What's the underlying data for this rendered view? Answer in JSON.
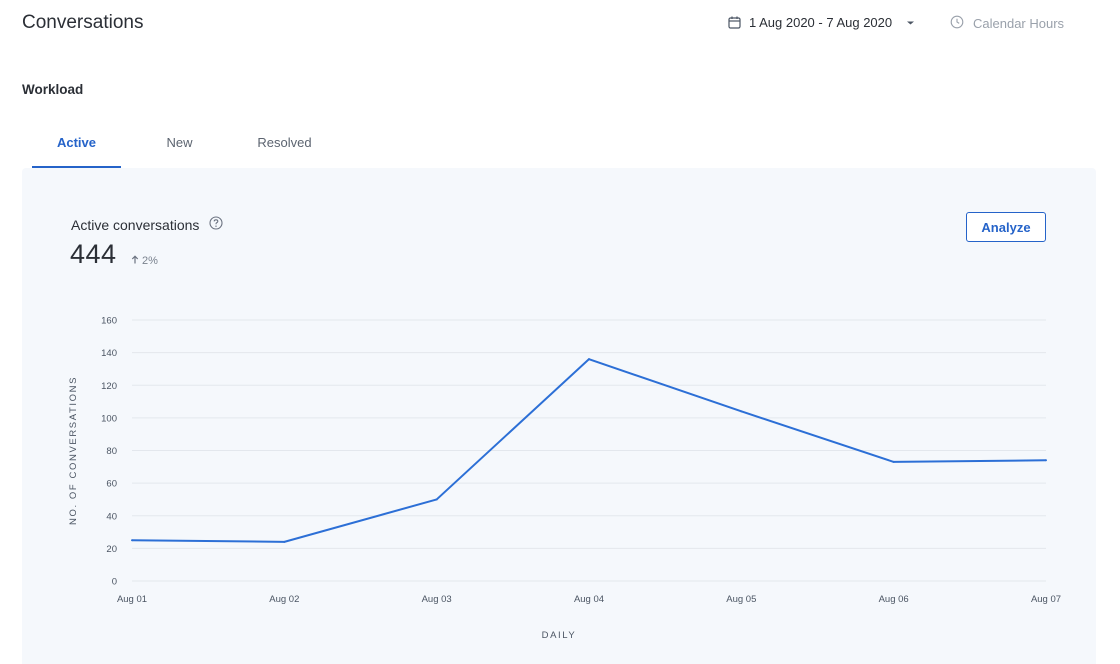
{
  "header": {
    "title": "Conversations",
    "date_range": "1 Aug 2020 - 7 Aug 2020",
    "calendar_hours": "Calendar Hours"
  },
  "section": {
    "title": "Workload"
  },
  "tabs": [
    {
      "label": "Active",
      "active": true
    },
    {
      "label": "New",
      "active": false
    },
    {
      "label": "Resolved",
      "active": false
    }
  ],
  "metric": {
    "label": "Active conversations",
    "value": "444",
    "change": "2%",
    "change_direction": "up"
  },
  "analyze_label": "Analyze",
  "colors": {
    "accent": "#2563c9",
    "line": "#2c6fd6",
    "grid": "#e3e7ed",
    "panel": "#f5f8fc"
  },
  "chart_data": {
    "type": "line",
    "title": "",
    "xlabel": "DAILY",
    "ylabel": "NO. OF CONVERSATIONS",
    "categories": [
      "Aug 01",
      "Aug 02",
      "Aug 03",
      "Aug 04",
      "Aug 05",
      "Aug 06",
      "Aug 07"
    ],
    "series": [
      {
        "values": [
          25,
          24,
          50,
          136,
          104,
          73,
          74
        ]
      }
    ],
    "ylim": [
      0,
      160
    ],
    "yticks": [
      0,
      20,
      40,
      60,
      80,
      100,
      120,
      140,
      160
    ],
    "grid": true,
    "legend": "none"
  }
}
